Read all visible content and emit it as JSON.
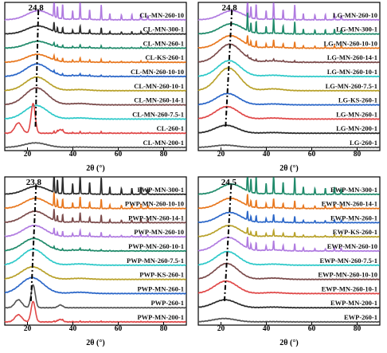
{
  "chart_data": [
    {
      "type": "line",
      "xlabel": "2θ (°)",
      "ylabel": "",
      "xlim": [
        10,
        90
      ],
      "x_ticks": [
        "20",
        "40",
        "60",
        "80"
      ],
      "peak_label": "24.8",
      "series": [
        {
          "name": "CL-MN-260-10",
          "color": "#b07be0"
        },
        {
          "name": "CL-MN-300-1",
          "color": "#2a2a2a"
        },
        {
          "name": "CL-MN-260-1",
          "color": "#1f8a6a"
        },
        {
          "name": "CL-KS-260-1",
          "color": "#e8771e"
        },
        {
          "name": "CL-MN-260-10-10",
          "color": "#2a66c8"
        },
        {
          "name": "CL-MN-260-10-1",
          "color": "#b8a12a"
        },
        {
          "name": "CL-MN-260-14-1",
          "color": "#7a4a4a"
        },
        {
          "name": "CL-MN-260-7.5-1",
          "color": "#2ec9c9"
        },
        {
          "name": "CL-260-1",
          "color": "#e04848"
        },
        {
          "name": "CL-MN-200-1",
          "color": "#555555"
        }
      ]
    },
    {
      "type": "line",
      "xlabel": "2θ (°)",
      "ylabel": "",
      "xlim": [
        10,
        90
      ],
      "x_ticks": [
        "20",
        "40",
        "60",
        "80"
      ],
      "peak_label": "24.8",
      "series": [
        {
          "name": "LG-MN-260-10",
          "color": "#b07be0"
        },
        {
          "name": "LG-MN-300-1",
          "color": "#1f8a6a"
        },
        {
          "name": "LG-MN-260-10-10",
          "color": "#e8771e"
        },
        {
          "name": "LG-MN-260-14-1",
          "color": "#7a4a4a"
        },
        {
          "name": "LG-MN-260-10-1",
          "color": "#2ec9c9"
        },
        {
          "name": "LG-MN-260-7.5-1",
          "color": "#b8a12a"
        },
        {
          "name": "LG-KS-260-1",
          "color": "#2a66c8"
        },
        {
          "name": "LG-MN-260-1",
          "color": "#e04848"
        },
        {
          "name": "LG-MN-200-1",
          "color": "#2a2a2a"
        },
        {
          "name": "LG-260-1",
          "color": "#555555"
        }
      ]
    },
    {
      "type": "line",
      "xlabel": "2θ (°)",
      "ylabel": "",
      "xlim": [
        10,
        90
      ],
      "x_ticks": [
        "20",
        "40",
        "60",
        "80"
      ],
      "peak_label": "23.8",
      "series": [
        {
          "name": "PWP-MN-300-1",
          "color": "#2a2a2a"
        },
        {
          "name": "PWP-MN-260-10-10",
          "color": "#e8771e"
        },
        {
          "name": "PWP-MN-260-14-1",
          "color": "#7a4a4a"
        },
        {
          "name": "PWP-MN-260-10",
          "color": "#b07be0"
        },
        {
          "name": "PWP-MN-260-10-1",
          "color": "#1f8a6a"
        },
        {
          "name": "PWP-MN-260-7.5-1",
          "color": "#2ec9c9"
        },
        {
          "name": "PWP-KS-260-1",
          "color": "#b8a12a"
        },
        {
          "name": "PWP-MN-260-1",
          "color": "#2a66c8"
        },
        {
          "name": "PWP-260-1",
          "color": "#555555"
        },
        {
          "name": "PWP-MN-200-1",
          "color": "#e04848"
        }
      ]
    },
    {
      "type": "line",
      "xlabel": "2θ (°)",
      "ylabel": "",
      "xlim": [
        10,
        90
      ],
      "x_ticks": [
        "20",
        "40",
        "60",
        "80"
      ],
      "peak_label": "24.5",
      "series": [
        {
          "name": "EWP-MN-300-1",
          "color": "#1f8a6a"
        },
        {
          "name": "EWP-MN-260-14-1",
          "color": "#e8771e"
        },
        {
          "name": "EWP-MN-260-1",
          "color": "#2a66c8"
        },
        {
          "name": "EWP-KS-260-1",
          "color": "#b8a12a"
        },
        {
          "name": "EWP-MN-260-10",
          "color": "#b07be0"
        },
        {
          "name": "EWP-MN-260-7.5-1",
          "color": "#2ec9c9"
        },
        {
          "name": "EWP-MN-260-10-10",
          "color": "#7a4a4a"
        },
        {
          "name": "EWP-MN-260-10-1",
          "color": "#e04848"
        },
        {
          "name": "EWP-MN-200-1",
          "color": "#2a2a2a"
        },
        {
          "name": "EWP-260-1",
          "color": "#555555"
        }
      ]
    }
  ]
}
